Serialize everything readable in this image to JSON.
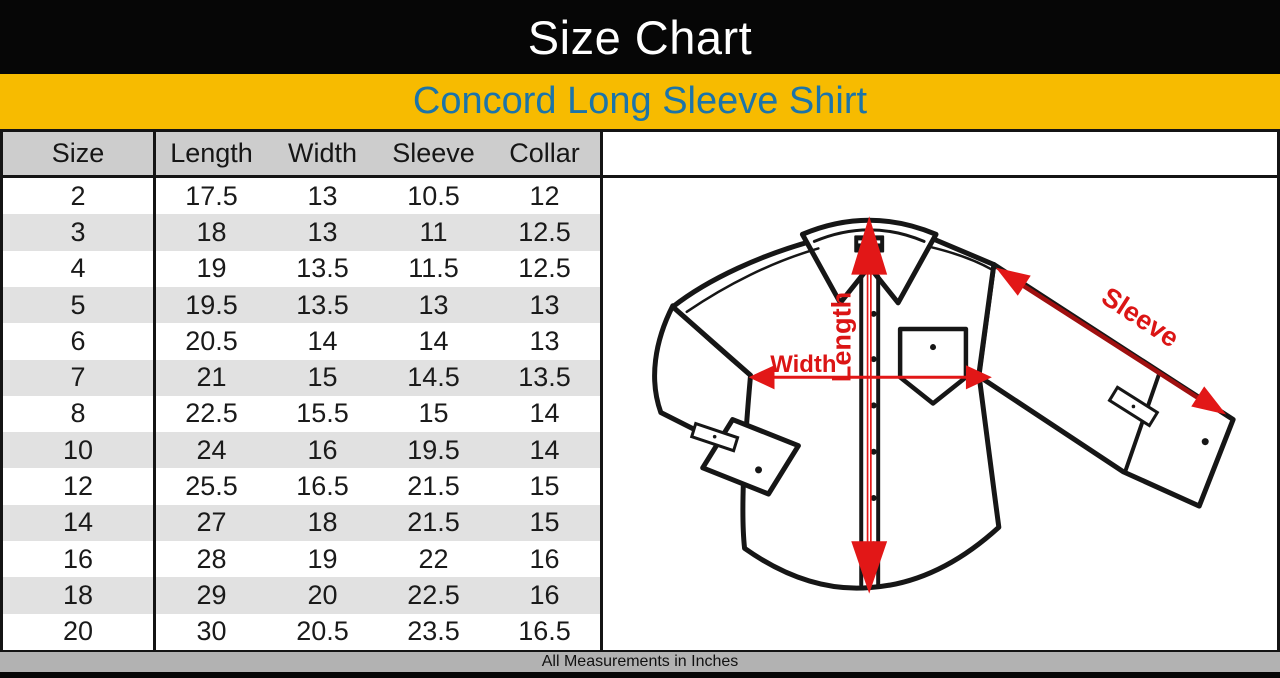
{
  "header": {
    "title": "Size Chart",
    "subtitle": "Concord Long Sleeve Shirt"
  },
  "table": {
    "columns": [
      "Size",
      "Length",
      "Width",
      "Sleeve",
      "Collar"
    ],
    "rows": [
      [
        "2",
        "17.5",
        "13",
        "10.5",
        "12"
      ],
      [
        "3",
        "18",
        "13",
        "11",
        "12.5"
      ],
      [
        "4",
        "19",
        "13.5",
        "11.5",
        "12.5"
      ],
      [
        "5",
        "19.5",
        "13.5",
        "13",
        "13"
      ],
      [
        "6",
        "20.5",
        "14",
        "14",
        "13"
      ],
      [
        "7",
        "21",
        "15",
        "14.5",
        "13.5"
      ],
      [
        "8",
        "22.5",
        "15.5",
        "15",
        "14"
      ],
      [
        "10",
        "24",
        "16",
        "19.5",
        "14"
      ],
      [
        "12",
        "25.5",
        "16.5",
        "21.5",
        "15"
      ],
      [
        "14",
        "27",
        "18",
        "21.5",
        "15"
      ],
      [
        "16",
        "28",
        "19",
        "22",
        "16"
      ],
      [
        "18",
        "29",
        "20",
        "22.5",
        "16"
      ],
      [
        "20",
        "30",
        "20.5",
        "23.5",
        "16.5"
      ]
    ]
  },
  "diagram": {
    "length_label": "Length",
    "width_label": "Width",
    "sleeve_label": "Sleeve"
  },
  "footer": {
    "note": "All Measurements in Inches"
  },
  "colors": {
    "banner_yellow": "#F7BB00",
    "subtitle_blue": "#1C74A9",
    "arrow_red": "#E21717",
    "arrow_dark_red": "#A01010",
    "label_red": "#DB1515",
    "header_gray": "#CDCDCD",
    "stripe_gray": "#E1E1E1",
    "footer_gray": "#B2B2B2",
    "line_black": "#141414"
  }
}
